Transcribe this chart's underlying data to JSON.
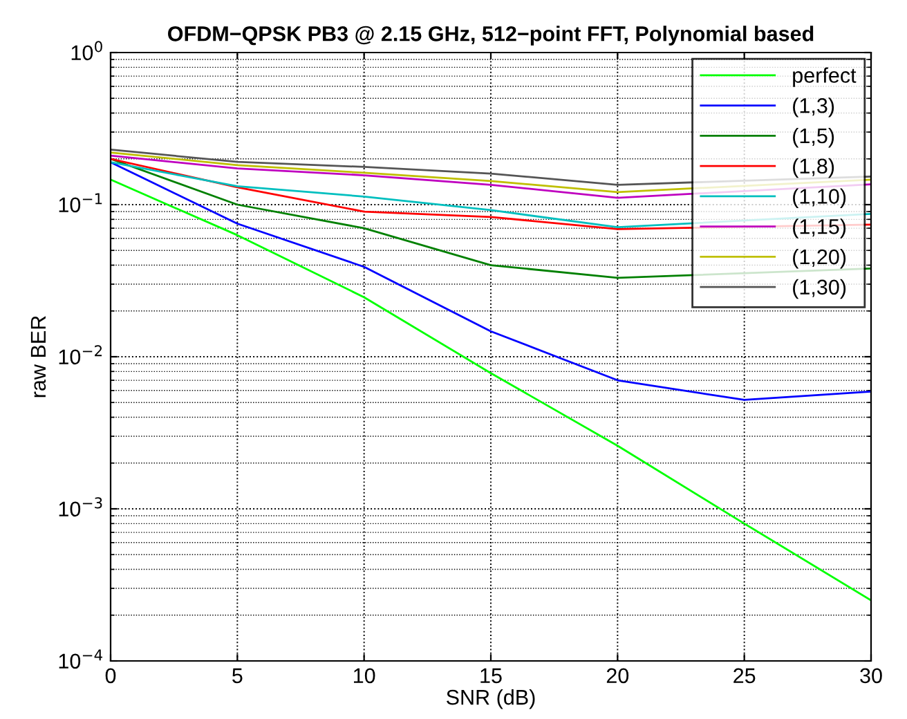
{
  "chart_data": {
    "type": "line",
    "title": "OFDM−QPSK PB3 @ 2.15 GHz, 512−point FFT, Polynomial based",
    "xlabel": "SNR (dB)",
    "ylabel": "raw BER",
    "x": [
      0,
      5,
      10,
      15,
      20,
      25,
      30
    ],
    "series": [
      {
        "name": "perfect",
        "color": "#00ff00",
        "values": [
          0.146,
          0.063,
          0.0246,
          0.0078,
          0.0026,
          0.0008,
          0.00025
        ]
      },
      {
        "name": "(1,3)",
        "color": "#0000ff",
        "values": [
          0.19,
          0.075,
          0.039,
          0.0147,
          0.007,
          0.0052,
          0.0059
        ]
      },
      {
        "name": "(1,5)",
        "color": "#008000",
        "values": [
          0.2,
          0.1,
          0.07,
          0.04,
          0.033,
          null,
          0.038
        ]
      },
      {
        "name": "(1,8)",
        "color": "#ff0000",
        "values": [
          0.2,
          0.13,
          0.09,
          0.083,
          0.069,
          null,
          0.074
        ]
      },
      {
        "name": "(1,10)",
        "color": "#00bfbf",
        "values": [
          0.19,
          0.132,
          0.113,
          0.092,
          0.071,
          null,
          0.087
        ]
      },
      {
        "name": "(1,15)",
        "color": "#bf00bf",
        "values": [
          0.21,
          0.173,
          0.156,
          0.135,
          0.111,
          null,
          0.136
        ]
      },
      {
        "name": "(1,20)",
        "color": "#bfbf00",
        "values": [
          0.22,
          0.182,
          0.162,
          0.143,
          0.121,
          null,
          0.146
        ]
      },
      {
        "name": "(1,30)",
        "color": "#555555",
        "values": [
          0.23,
          0.191,
          0.177,
          0.16,
          0.135,
          null,
          0.153
        ]
      }
    ],
    "log": "y",
    "xlim": [
      0,
      30
    ],
    "xticks": [
      0,
      5,
      10,
      15,
      20,
      25,
      30
    ],
    "ylim": [
      0.0001,
      1
    ],
    "yticks": [
      {
        "value": 0.0001,
        "label": "10$^{−4}$"
      },
      {
        "value": 0.001,
        "label": "10$^{−3}$"
      },
      {
        "value": 0.01,
        "label": "10$^{−2}$"
      },
      {
        "value": 0.1,
        "label": "10$^{−1}$"
      },
      {
        "value": 1,
        "label": "10$^{0}$"
      }
    ],
    "grid": true,
    "legend": "top right",
    "line_style": "solid",
    "marker": "none"
  }
}
